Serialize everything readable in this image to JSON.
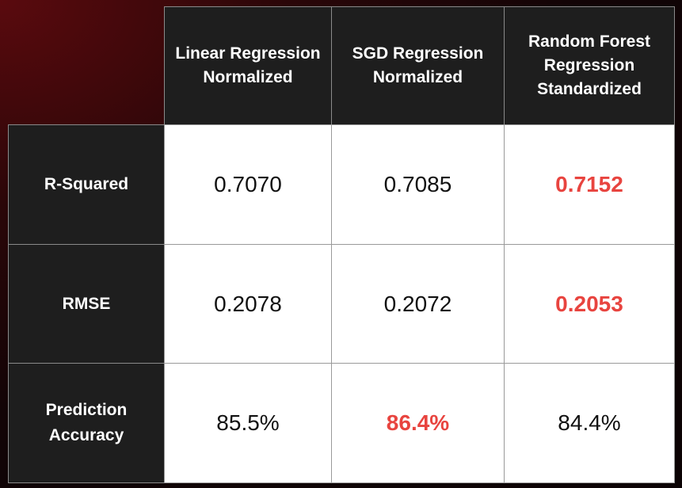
{
  "chart_data": {
    "type": "table",
    "columns": [
      "Linear Regression Normalized",
      "SGD Regression Normalized",
      "Random Forest Regression Standardized"
    ],
    "column_header_lines": [
      [
        "Linear Regression",
        "Normalized"
      ],
      [
        "SGD Regression",
        "Normalized"
      ],
      [
        "Random Forest",
        "Regression",
        "Standardized"
      ]
    ],
    "rows": [
      {
        "label_lines": [
          "R-Squared"
        ],
        "label": "R-Squared",
        "values": [
          "0.7070",
          "0.7085",
          "0.7152"
        ],
        "best_index": 2
      },
      {
        "label_lines": [
          "RMSE"
        ],
        "label": "RMSE",
        "values": [
          "0.2078",
          "0.2072",
          "0.2053"
        ],
        "best_index": 2
      },
      {
        "label_lines": [
          "Prediction",
          "Accuracy"
        ],
        "label": "Prediction Accuracy",
        "values": [
          "85.5%",
          "86.4%",
          "84.4%"
        ],
        "best_index": 1
      }
    ],
    "highlight_color": "#e8443f"
  },
  "colors": {
    "header_bg": "#1e1e1e",
    "cell_bg": "#ffffff",
    "highlight": "#e8443f"
  }
}
